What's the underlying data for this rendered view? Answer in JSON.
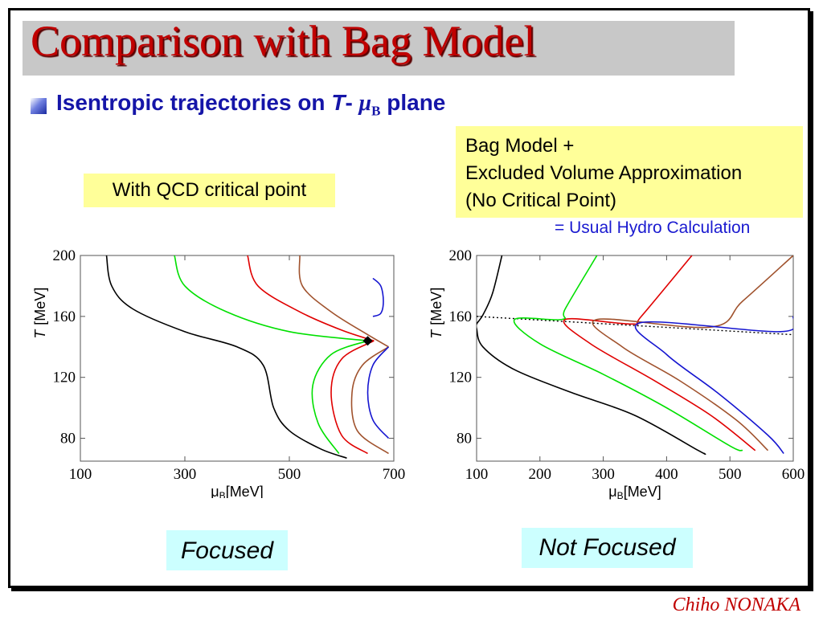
{
  "slide": {
    "title": "Comparison with Bag Model",
    "subtitle_text": "Isentropic  trajectories on",
    "subtitle_T": "T",
    "subtitle_dash": "-",
    "subtitle_mu": "μ",
    "subtitle_sub": "B",
    "subtitle_plane": "plane",
    "qcd_label": "With QCD critical  point",
    "bag_lines": [
      "Bag Model +",
      "Excluded Volume Approximation",
      "(No Critical Point)"
    ],
    "hydro_label": "= Usual Hydro Calculation",
    "focused_label": "Focused",
    "notfocused_label": "Not Focused",
    "author": "Chiho NONAKA"
  },
  "chart_data": [
    {
      "type": "line",
      "title": "",
      "xlabel_mu": "μ",
      "xlabel_sub": "B",
      "xlabel_unit": "[MeV]",
      "ylabel_T": "T",
      "ylabel_unit": "[MeV]",
      "xlim": [
        100,
        700
      ],
      "ylim": [
        65,
        200
      ],
      "xticks": [
        100,
        300,
        500,
        700
      ],
      "yticks": [
        80,
        120,
        160,
        200
      ],
      "critical_point": {
        "x": 650,
        "y": 144
      },
      "series": [
        {
          "color": "#000000",
          "points": [
            [
              150,
              200
            ],
            [
              160,
              180
            ],
            [
              200,
              165
            ],
            [
              300,
              150
            ],
            [
              400,
              140
            ],
            [
              450,
              128
            ],
            [
              470,
              100
            ],
            [
              500,
              85
            ],
            [
              560,
              73
            ],
            [
              610,
              67
            ]
          ]
        },
        {
          "color": "#00e000",
          "points": [
            [
              280,
              200
            ],
            [
              300,
              180
            ],
            [
              380,
              163
            ],
            [
              500,
              150
            ],
            [
              650,
              144
            ]
          ]
        },
        {
          "color": "#00e000",
          "points": [
            [
              650,
              144
            ],
            [
              580,
              135
            ],
            [
              545,
              115
            ],
            [
              555,
              90
            ],
            [
              595,
              70
            ]
          ]
        },
        {
          "color": "#e00000",
          "points": [
            [
              420,
              200
            ],
            [
              440,
              180
            ],
            [
              520,
              163
            ],
            [
              600,
              151
            ],
            [
              662,
              144
            ]
          ]
        },
        {
          "color": "#e00000",
          "points": [
            [
              662,
              144
            ],
            [
              600,
              132
            ],
            [
              580,
              110
            ],
            [
              600,
              82
            ],
            [
              650,
              70
            ]
          ]
        },
        {
          "color": "#a0522d",
          "points": [
            [
              520,
              200
            ],
            [
              525,
              180
            ],
            [
              580,
              163
            ],
            [
              650,
              148
            ],
            [
              690,
              140
            ]
          ]
        },
        {
          "color": "#a0522d",
          "points": [
            [
              690,
              140
            ],
            [
              640,
              128
            ],
            [
              620,
              110
            ],
            [
              630,
              85
            ],
            [
              690,
              70
            ]
          ]
        },
        {
          "color": "#1515d0",
          "points": [
            [
              660,
              185
            ],
            [
              675,
              180
            ],
            [
              680,
              170
            ],
            [
              675,
              162
            ],
            [
              660,
              160
            ]
          ]
        },
        {
          "color": "#1515d0",
          "points": [
            [
              690,
              140
            ],
            [
              660,
              128
            ],
            [
              650,
              110
            ],
            [
              660,
              92
            ],
            [
              690,
              80
            ]
          ]
        }
      ]
    },
    {
      "type": "line",
      "title": "",
      "xlabel_mu": "μ",
      "xlabel_sub": "B",
      "xlabel_unit": "[MeV]",
      "ylabel_T": "T",
      "ylabel_unit": "[MeV]",
      "xlim": [
        100,
        600
      ],
      "ylim": [
        65,
        200
      ],
      "xticks": [
        100,
        200,
        300,
        400,
        500,
        600
      ],
      "yticks": [
        80,
        120,
        160,
        200
      ],
      "phase_line": [
        [
          100,
          160
        ],
        [
          600,
          148
        ]
      ],
      "series": [
        {
          "color": "#000000",
          "points": [
            [
              140,
              200
            ],
            [
              125,
              175
            ],
            [
              110,
              161
            ],
            [
              100,
              155
            ],
            [
              100,
              152
            ],
            [
              110,
              140
            ],
            [
              160,
              125
            ],
            [
              250,
              110
            ],
            [
              350,
              95
            ],
            [
              450,
              72
            ],
            [
              460,
              70
            ]
          ]
        },
        {
          "color": "#00e000",
          "points": [
            [
              290,
              200
            ],
            [
              240,
              165
            ],
            [
              235,
              158
            ],
            [
              160,
              158
            ],
            [
              200,
              142
            ],
            [
              300,
              122
            ],
            [
              400,
              100
            ],
            [
              500,
              75
            ],
            [
              520,
              72
            ]
          ]
        },
        {
          "color": "#e00000",
          "points": [
            [
              440,
              200
            ],
            [
              360,
              160
            ],
            [
              345,
              155
            ],
            [
              240,
              158
            ],
            [
              280,
              142
            ],
            [
              380,
              118
            ],
            [
              470,
              95
            ],
            [
              540,
              72
            ]
          ]
        },
        {
          "color": "#a0522d",
          "points": [
            [
              600,
              200
            ],
            [
              520,
              170
            ],
            [
              470,
              153
            ],
            [
              290,
              158
            ],
            [
              330,
              140
            ],
            [
              420,
              118
            ],
            [
              510,
              92
            ],
            [
              560,
              72
            ]
          ]
        },
        {
          "color": "#1515d0",
          "points": [
            [
              600,
              160
            ],
            [
              580,
              150
            ],
            [
              360,
              156
            ],
            [
              400,
              135
            ],
            [
              480,
              110
            ],
            [
              560,
              82
            ],
            [
              585,
              70
            ]
          ]
        }
      ]
    }
  ]
}
